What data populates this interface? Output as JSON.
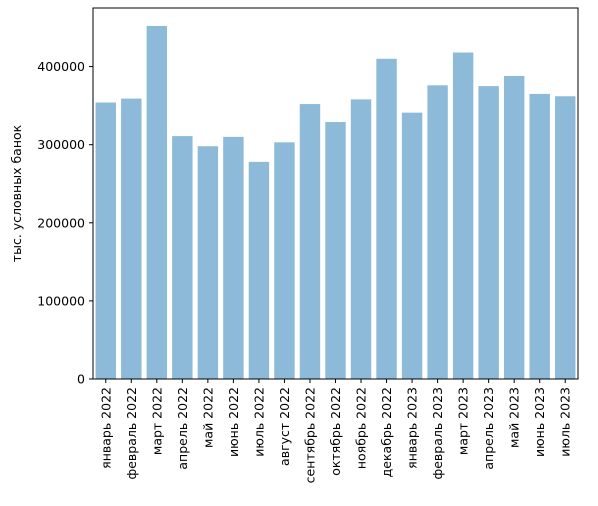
{
  "chart_data": {
    "type": "bar",
    "title": "",
    "xlabel": "",
    "ylabel": "тыс. условных банок",
    "ylim": [
      0,
      475000
    ],
    "yticks": [
      0,
      100000,
      200000,
      300000,
      400000
    ],
    "ytick_labels": [
      "0",
      "100000",
      "200000",
      "300000",
      "400000"
    ],
    "grid": false,
    "legend": "none",
    "bar_color": "#8dbad9",
    "categories": [
      "январь 2022",
      "февраль 2022",
      "март 2022",
      "апрель 2022",
      "май 2022",
      "июнь 2022",
      "июль 2022",
      "август 2022",
      "сентябрь 2022",
      "октябрь 2022",
      "ноябрь 2022",
      "декабрь 2022",
      "январь 2023",
      "февраль 2023",
      "март 2023",
      "апрель 2023",
      "май 2023",
      "июнь 2023",
      "июль 2023"
    ],
    "values": [
      354000,
      359000,
      452000,
      311000,
      298000,
      310000,
      278000,
      303000,
      352000,
      329000,
      358000,
      410000,
      341000,
      376000,
      418000,
      375000,
      388000,
      365000,
      362000
    ]
  }
}
